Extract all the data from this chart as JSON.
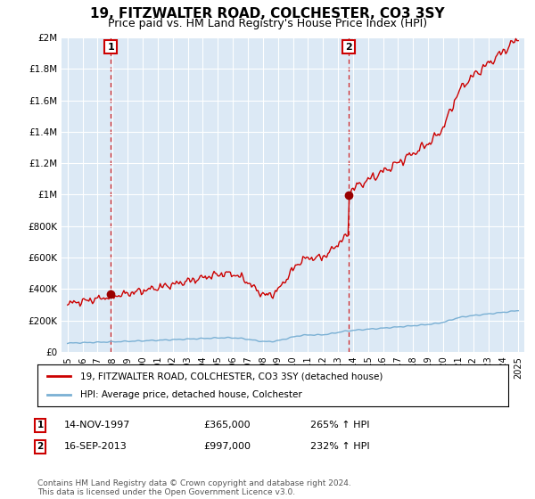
{
  "title": "19, FITZWALTER ROAD, COLCHESTER, CO3 3SY",
  "subtitle": "Price paid vs. HM Land Registry's House Price Index (HPI)",
  "title_fontsize": 11,
  "subtitle_fontsize": 9,
  "background_color": "#ffffff",
  "plot_bg_color": "#dce9f5",
  "grid_color": "#ffffff",
  "sale1_date": "14-NOV-1997",
  "sale1_price": 365000,
  "sale1_hpi": "265% ↑ HPI",
  "sale1_label": "1",
  "sale2_date": "16-SEP-2013",
  "sale2_price": 997000,
  "sale2_hpi": "232% ↑ HPI",
  "sale2_label": "2",
  "legend_line1": "19, FITZWALTER ROAD, COLCHESTER, CO3 3SY (detached house)",
  "legend_line2": "HPI: Average price, detached house, Colchester",
  "footer": "Contains HM Land Registry data © Crown copyright and database right 2024.\nThis data is licensed under the Open Government Licence v3.0.",
  "ylim": [
    0,
    2000000
  ],
  "yticks": [
    0,
    200000,
    400000,
    600000,
    800000,
    1000000,
    1200000,
    1400000,
    1600000,
    1800000,
    2000000
  ],
  "ytick_labels": [
    "£0",
    "£200K",
    "£400K",
    "£600K",
    "£800K",
    "£1M",
    "£1.2M",
    "£1.4M",
    "£1.6M",
    "£1.8M",
    "£2M"
  ],
  "line_color_red": "#cc0000",
  "line_color_blue": "#7ab0d4",
  "marker_color": "#990000",
  "dashed_line_color": "#cc0000",
  "annotation_box_color": "#cc0000",
  "sale1_year": 1997.87,
  "sale2_year": 2013.71
}
